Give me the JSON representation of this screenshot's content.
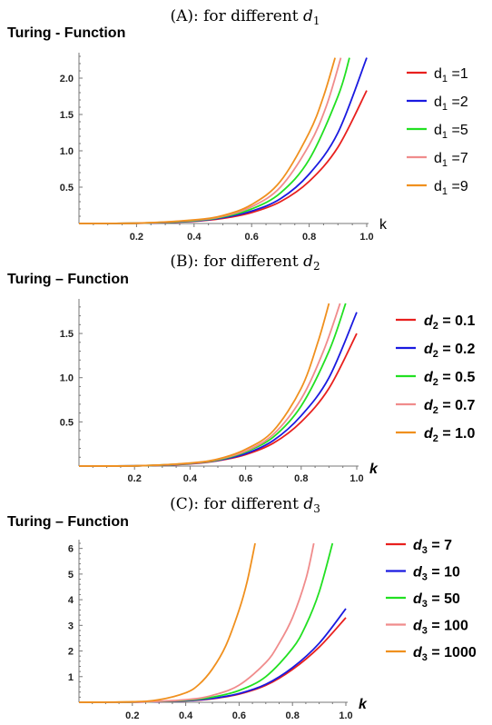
{
  "chart_data": [
    {
      "type": "line",
      "title": "(A): for different d1",
      "title_parts": {
        "main": "(A): for different ",
        "var": "d",
        "sub": "1"
      },
      "ylabel": "Turing - Function",
      "xlabel": "k",
      "xlim": [
        0,
        1.0
      ],
      "ylim": [
        0,
        2.3
      ],
      "xticks": [
        0.2,
        0.4,
        0.6,
        0.8,
        1.0
      ],
      "xtick_labels": [
        "0.2",
        "0.4",
        "0.6",
        "0.8",
        "1.0"
      ],
      "yticks": [
        0.5,
        1.0,
        1.5,
        2.0
      ],
      "ytick_labels": [
        "0.5",
        "1.0",
        "1.5",
        "2.0"
      ],
      "legend_placement": "right",
      "series": [
        {
          "label": "d1 =1",
          "var": "d",
          "sub": "1",
          "rest": " =1",
          "color": "#e8201e",
          "x": [
            0,
            0.2,
            0.4,
            0.5,
            0.6,
            0.7,
            0.8,
            0.9,
            1.0
          ],
          "y": [
            0,
            0.003,
            0.03,
            0.07,
            0.15,
            0.3,
            0.58,
            1.05,
            1.83
          ]
        },
        {
          "label": "d1 =2",
          "var": "d",
          "sub": "1",
          "rest": " =2",
          "color": "#1a1ae0",
          "x": [
            0,
            0.2,
            0.4,
            0.5,
            0.6,
            0.7,
            0.8,
            0.9,
            1.0
          ],
          "y": [
            0,
            0.003,
            0.035,
            0.08,
            0.17,
            0.34,
            0.68,
            1.25,
            2.28
          ]
        },
        {
          "label": "d1 =5",
          "var": "d",
          "sub": "1",
          "rest": " =5",
          "color": "#22e022",
          "x": [
            0,
            0.2,
            0.4,
            0.5,
            0.6,
            0.7,
            0.8,
            0.9,
            0.94
          ],
          "y": [
            0,
            0.004,
            0.04,
            0.09,
            0.2,
            0.42,
            0.88,
            1.75,
            2.28
          ]
        },
        {
          "label": "d1 =7",
          "var": "d",
          "sub": "1",
          "rest": " =7",
          "color": "#f08c8c",
          "x": [
            0,
            0.2,
            0.4,
            0.5,
            0.6,
            0.7,
            0.8,
            0.86,
            0.91
          ],
          "y": [
            0,
            0.004,
            0.045,
            0.1,
            0.23,
            0.5,
            1.08,
            1.62,
            2.28
          ]
        },
        {
          "label": "d1 =9",
          "var": "d",
          "sub": "1",
          "rest": " =9",
          "color": "#f0901e",
          "x": [
            0,
            0.2,
            0.4,
            0.5,
            0.6,
            0.7,
            0.8,
            0.85,
            0.89
          ],
          "y": [
            0,
            0.004,
            0.05,
            0.11,
            0.26,
            0.58,
            1.25,
            1.75,
            2.28
          ]
        }
      ]
    },
    {
      "type": "line",
      "title": "(B): for different d2",
      "title_parts": {
        "main": "(B): for different ",
        "var": "d",
        "sub": "2"
      },
      "ylabel": "Turing – Function",
      "xlabel": "k",
      "xlim": [
        0,
        1.0
      ],
      "ylim": [
        0,
        1.85
      ],
      "xticks": [
        0.2,
        0.4,
        0.6,
        0.8,
        1.0
      ],
      "xtick_labels": [
        "0.2",
        "0.4",
        "0.6",
        "0.8",
        "1.0"
      ],
      "yticks": [
        0.5,
        1.0,
        1.5
      ],
      "ytick_labels": [
        "0.5",
        "1.0",
        "1.5"
      ],
      "legend_placement": "right",
      "series": [
        {
          "label": "d2 = 0.1",
          "var": "d",
          "sub": "2",
          "rest": " = 0.1",
          "color": "#e8201e",
          "x": [
            0,
            0.2,
            0.4,
            0.5,
            0.6,
            0.7,
            0.8,
            0.9,
            1.0
          ],
          "y": [
            0,
            0.002,
            0.025,
            0.06,
            0.13,
            0.26,
            0.5,
            0.88,
            1.5
          ]
        },
        {
          "label": "d2 = 0.2",
          "var": "d",
          "sub": "2",
          "rest": " = 0.2",
          "color": "#1a1ae0",
          "x": [
            0,
            0.2,
            0.4,
            0.5,
            0.6,
            0.7,
            0.8,
            0.9,
            1.0
          ],
          "y": [
            0,
            0.002,
            0.027,
            0.065,
            0.14,
            0.29,
            0.57,
            1.0,
            1.74
          ]
        },
        {
          "label": "d2 = 0.5",
          "var": "d",
          "sub": "2",
          "rest": " = 0.5",
          "color": "#22e022",
          "x": [
            0,
            0.2,
            0.4,
            0.5,
            0.6,
            0.7,
            0.8,
            0.9,
            0.96
          ],
          "y": [
            0,
            0.002,
            0.03,
            0.07,
            0.16,
            0.33,
            0.68,
            1.3,
            1.84
          ]
        },
        {
          "label": "d2 = 0.7",
          "var": "d",
          "sub": "2",
          "rest": " = 0.7",
          "color": "#f08c8c",
          "x": [
            0,
            0.2,
            0.4,
            0.5,
            0.6,
            0.7,
            0.8,
            0.88,
            0.94
          ],
          "y": [
            0,
            0.002,
            0.032,
            0.075,
            0.17,
            0.36,
            0.76,
            1.3,
            1.84
          ]
        },
        {
          "label": "d2 = 1.0",
          "var": "d",
          "sub": "2",
          "rest": " = 1.0",
          "color": "#f0901e",
          "x": [
            0,
            0.2,
            0.4,
            0.5,
            0.6,
            0.7,
            0.8,
            0.86,
            0.9
          ],
          "y": [
            0,
            0.002,
            0.035,
            0.08,
            0.19,
            0.4,
            0.88,
            1.4,
            1.84
          ]
        }
      ]
    },
    {
      "type": "line",
      "title": "(C): for different d3",
      "title_parts": {
        "main": "(C): for different ",
        "var": "d",
        "sub": "3"
      },
      "ylabel": "Turing – Function",
      "xlabel": "k",
      "xlim": [
        0,
        1.0
      ],
      "ylim": [
        0,
        6.2
      ],
      "xticks": [
        0.2,
        0.4,
        0.6,
        0.8,
        1.0
      ],
      "xtick_labels": [
        "0.2",
        "0.4",
        "0.6",
        "0.8",
        "1.0"
      ],
      "yticks": [
        1,
        2,
        3,
        4,
        5,
        6
      ],
      "ytick_labels": [
        "1",
        "2",
        "3",
        "4",
        "5",
        "6"
      ],
      "legend_placement": "right",
      "series": [
        {
          "label": "d3 = 7",
          "var": "d",
          "sub": "3",
          "rest": " = 7",
          "color": "#e8201e",
          "x": [
            0,
            0.2,
            0.4,
            0.5,
            0.6,
            0.7,
            0.8,
            0.9,
            1.0
          ],
          "y": [
            0,
            0.005,
            0.06,
            0.14,
            0.32,
            0.66,
            1.28,
            2.15,
            3.3
          ]
        },
        {
          "label": "d3 = 10",
          "var": "d",
          "sub": "3",
          "rest": " = 10",
          "color": "#1a1ae0",
          "x": [
            0,
            0.2,
            0.4,
            0.5,
            0.6,
            0.7,
            0.8,
            0.9,
            1.0
          ],
          "y": [
            0,
            0.005,
            0.065,
            0.15,
            0.34,
            0.7,
            1.35,
            2.3,
            3.65
          ]
        },
        {
          "label": "d3 = 50",
          "var": "d",
          "sub": "3",
          "rest": " = 50",
          "color": "#22e022",
          "x": [
            0,
            0.2,
            0.4,
            0.5,
            0.6,
            0.7,
            0.8,
            0.85,
            0.9,
            0.95
          ],
          "y": [
            0,
            0.006,
            0.08,
            0.2,
            0.46,
            1.0,
            2.1,
            3.0,
            4.3,
            6.2
          ]
        },
        {
          "label": "d3 = 100",
          "var": "d",
          "sub": "3",
          "rest": " = 100",
          "color": "#f08c8c",
          "x": [
            0,
            0.2,
            0.4,
            0.5,
            0.6,
            0.7,
            0.75,
            0.8,
            0.85,
            0.88
          ],
          "y": [
            0,
            0.006,
            0.1,
            0.27,
            0.67,
            1.55,
            2.3,
            3.3,
            4.8,
            6.2
          ]
        },
        {
          "label": "d3 = 1000",
          "var": "d",
          "sub": "3",
          "rest": " = 1000",
          "color": "#f0901e",
          "x": [
            0,
            0.2,
            0.3,
            0.4,
            0.45,
            0.5,
            0.55,
            0.6,
            0.63,
            0.66
          ],
          "y": [
            0,
            0.02,
            0.1,
            0.37,
            0.7,
            1.3,
            2.2,
            3.6,
            4.7,
            6.2
          ]
        }
      ]
    }
  ]
}
